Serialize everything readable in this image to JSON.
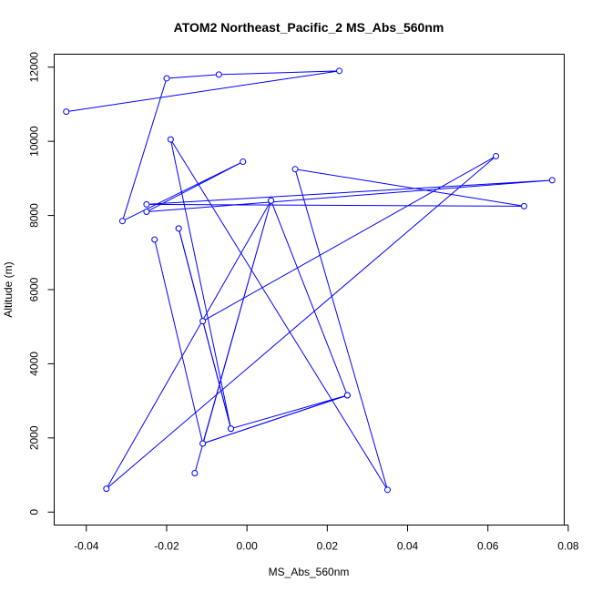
{
  "chart_data": {
    "type": "line",
    "title": "ATOM2 Northeast_Pacific_2 MS_Abs_560nm",
    "xlabel": "MS_Abs_560nm",
    "ylabel": "Altitude (m)",
    "xlim": [
      -0.048,
      0.079
    ],
    "ylim": [
      -350,
      12350
    ],
    "x_ticks": [
      -0.04,
      -0.02,
      0.0,
      0.02,
      0.04,
      0.06,
      0.08
    ],
    "x_tick_labels": [
      "-0.04",
      "-0.02",
      "0.00",
      "0.02",
      "0.04",
      "0.06",
      "0.08"
    ],
    "y_ticks": [
      0,
      2000,
      4000,
      6000,
      8000,
      10000,
      12000
    ],
    "y_tick_labels": [
      "0",
      "2000",
      "4000",
      "6000",
      "8000",
      "10000",
      "12000"
    ],
    "markers": "open-circle",
    "grid": false,
    "legend": "none",
    "series": [
      {
        "color": "#0000ff",
        "x": [
          -0.045,
          0.023,
          -0.007,
          -0.02,
          -0.031,
          -0.001,
          -0.025,
          0.076,
          -0.025,
          0.069,
          0.012,
          0.035,
          -0.019,
          -0.004,
          -0.017,
          -0.011,
          0.062,
          -0.035,
          0.006,
          0.025,
          -0.011,
          0.006,
          -0.013
        ],
        "y": [
          10800,
          11900,
          11800,
          11700,
          7850,
          9450,
          8100,
          8950,
          8300,
          8250,
          9250,
          600,
          10050,
          2250,
          7650,
          5150,
          9600,
          630,
          8400,
          3150,
          1850,
          8400,
          1050
        ]
      },
      {
        "color": "#0000ff",
        "x": [
          -0.023,
          -0.011,
          0.025,
          -0.004,
          -0.017
        ],
        "y": [
          7350,
          1850,
          3150,
          2250,
          7650
        ]
      }
    ]
  }
}
